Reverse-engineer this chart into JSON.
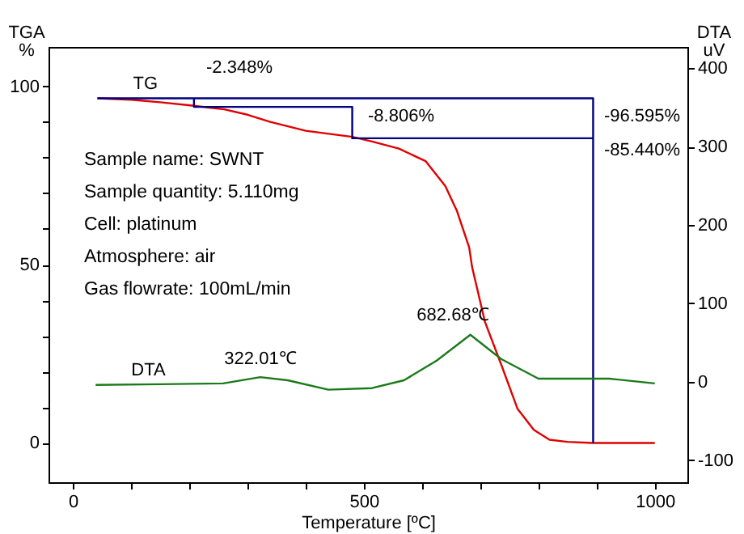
{
  "chart_data": {
    "type": "line",
    "xlabel": "Temperature [ºC]",
    "ylabel": "TGA %",
    "y2label": "DTA uV",
    "xlim": [
      -42,
      1056
    ],
    "xticks": [
      0,
      {
        "value": 100,
        "label": null
      },
      {
        "value": 200,
        "label": null
      },
      {
        "value": 300,
        "label": null
      },
      {
        "value": 400,
        "label": null
      },
      500,
      {
        "value": 600,
        "label": null
      },
      {
        "value": 700,
        "label": null
      },
      {
        "value": 800,
        "label": null
      },
      {
        "value": 900,
        "label": null
      },
      1000
    ],
    "ylim": [
      -11,
      111
    ],
    "yticks": [
      0,
      {
        "value": 10,
        "label": null
      },
      {
        "value": 20,
        "label": null
      },
      {
        "value": 30,
        "label": null
      },
      {
        "value": 40,
        "label": null
      },
      50,
      {
        "value": 60,
        "label": null
      },
      {
        "value": 70,
        "label": null
      },
      {
        "value": 80,
        "label": null
      },
      {
        "value": 90,
        "label": null
      },
      100
    ],
    "y2lim": [
      -128,
      427
    ],
    "y2ticks": [
      -100,
      0,
      100,
      200,
      300,
      400
    ],
    "grid": false,
    "series": [
      {
        "name": "TG",
        "color": "#e00000",
        "x": [
          42,
          100,
          150,
          208,
          260,
          300,
          339,
          400,
          480,
          514,
          560,
          606,
          640,
          660,
          681,
          686,
          708,
          736,
          764,
          792,
          819,
          850,
          894,
          950,
          1000
        ],
        "values": [
          96.6,
          96.2,
          95.5,
          94.5,
          93.5,
          92.0,
          90.0,
          87.5,
          85.8,
          84.5,
          82.5,
          79,
          72,
          65,
          54.8,
          49.3,
          34,
          22,
          9.6,
          3.7,
          0.9,
          0.3,
          0,
          0,
          0
        ]
      },
      {
        "name": "DTA",
        "color": "#1a7a1a",
        "axis": "y2",
        "x": [
          39,
          150,
          258,
          322,
          369,
          439,
          514,
          569,
          625,
          683,
          736,
          800,
          922,
          1000
        ],
        "values": [
          -4,
          -3,
          -2,
          6,
          2,
          -10,
          -8,
          2,
          27,
          60,
          29,
          4,
          4,
          -2
        ]
      },
      {
        "color": "#000080",
        "x": [
          42,
          894,
          894
        ],
        "values": [
          96.6,
          96.6,
          0
        ]
      },
      {
        "color": "#000080",
        "x": [
          208,
          208,
          480,
          480,
          894
        ],
        "values": [
          96.6,
          94.2,
          94.2,
          85.4,
          85.4
        ]
      }
    ],
    "annotations": [
      "-2.348%",
      "-8.806%",
      "-96.595%",
      "-85.440%",
      "322.01℃",
      "682.68℃",
      "Sample name: SWNT",
      "Sample quantity: 5.110mg",
      "Cell: platinum",
      "Atmosphere: air",
      "Gas flowrate: 100mL/min"
    ]
  }
}
